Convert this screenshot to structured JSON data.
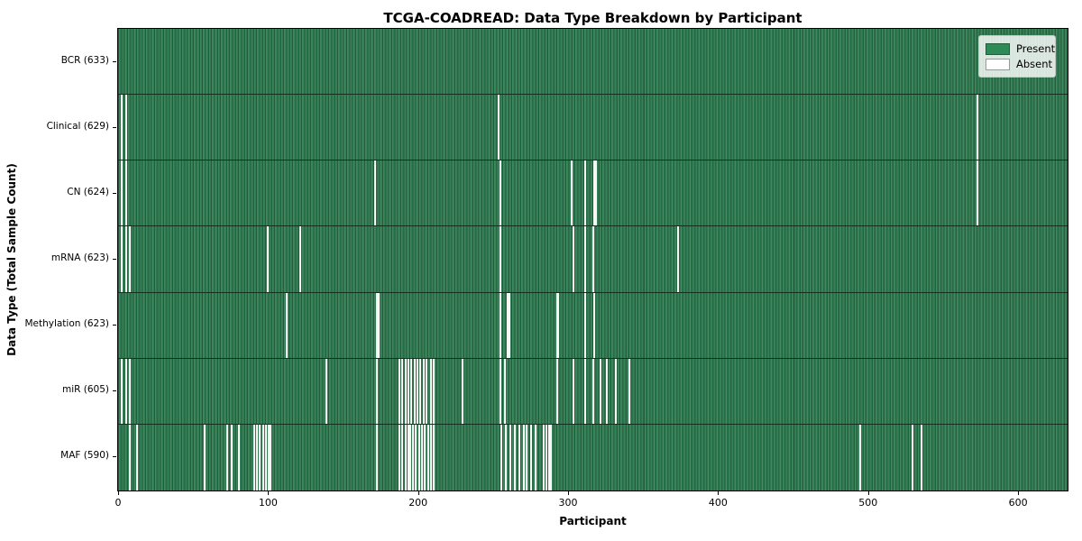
{
  "title": "TCGA-COADREAD: Data Type Breakdown by Participant",
  "colors": {
    "present": "#2e8b57",
    "present_dark_edge": "#245c3c",
    "present_light": "#3f8a60",
    "absent": "#ffffff",
    "absent_swatch_border": "#999999",
    "plot_border": "#000000",
    "legend_background": "rgba(255,255,255,0.82)"
  },
  "chart_data": {
    "type": "heatmap",
    "title": "TCGA-COADREAD: Data Type Breakdown by Participant",
    "xlabel": "Participant",
    "ylabel": "Data Type (Total Sample Count)",
    "xlim": [
      0,
      633
    ],
    "n_participants": 633,
    "x_ticks": [
      0,
      100,
      200,
      300,
      400,
      500,
      600
    ],
    "grid": false,
    "legend_position": "upper right",
    "legend": [
      {
        "label": "Present",
        "color": "#2e8b57"
      },
      {
        "label": "Absent",
        "color": "#ffffff"
      }
    ],
    "rows": [
      {
        "label": "BCR (633)",
        "data_type": "BCR",
        "present_count": 633,
        "absent_participants": []
      },
      {
        "label": "Clinical (629)",
        "data_type": "Clinical",
        "present_count": 629,
        "absent_participants": [
          2,
          5,
          253,
          572
        ]
      },
      {
        "label": "CN (624)",
        "data_type": "CN",
        "present_count": 624,
        "absent_participants": [
          2,
          5,
          171,
          254,
          302,
          311,
          317,
          318,
          572
        ]
      },
      {
        "label": "mRNA (623)",
        "data_type": "mRNA",
        "present_count": 623,
        "absent_participants": [
          2,
          5,
          7,
          99,
          121,
          254,
          303,
          311,
          316,
          373
        ]
      },
      {
        "label": "Methylation (623)",
        "data_type": "Methylation",
        "present_count": 623,
        "absent_participants": [
          112,
          172,
          173,
          254,
          259,
          260,
          292,
          293,
          311,
          317
        ]
      },
      {
        "label": "miR (605)",
        "data_type": "miR",
        "present_count": 605,
        "absent_participants": [
          2,
          5,
          7,
          138,
          172,
          187,
          189,
          191,
          193,
          195,
          197,
          199,
          201,
          203,
          205,
          208,
          210,
          229,
          254,
          257,
          292,
          303,
          311,
          316,
          321,
          325,
          331,
          340
        ]
      },
      {
        "label": "MAF (590)",
        "data_type": "MAF",
        "present_count": 590,
        "absent_participants": [
          7,
          12,
          57,
          72,
          75,
          80,
          90,
          92,
          94,
          96,
          98,
          100,
          101,
          172,
          187,
          189,
          191,
          193,
          194,
          196,
          198,
          200,
          202,
          204,
          206,
          208,
          210,
          255,
          258,
          261,
          264,
          267,
          270,
          272,
          275,
          278,
          283,
          285,
          287,
          288,
          494,
          529,
          535
        ]
      }
    ]
  }
}
